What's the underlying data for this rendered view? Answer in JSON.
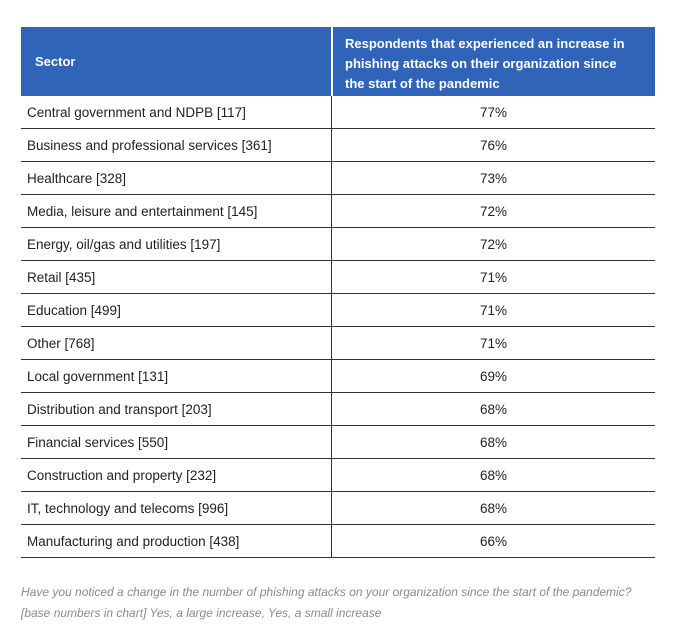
{
  "table": {
    "header": {
      "sector": "Sector",
      "value_line1": "Respondents that experienced an increase in",
      "value_line2": "phishing attacks on their organization since",
      "value_line3": "the start of the pandemic"
    },
    "rows": [
      {
        "sector": "Central government and NDPB [117]",
        "value": "77%"
      },
      {
        "sector": "Business and professional services [361]",
        "value": "76%"
      },
      {
        "sector": "Healthcare [328]",
        "value": "73%"
      },
      {
        "sector": "Media, leisure and entertainment [145]",
        "value": "72%"
      },
      {
        "sector": "Energy, oil/gas and utilities [197]",
        "value": "72%"
      },
      {
        "sector": "Retail [435]",
        "value": "71%"
      },
      {
        "sector": "Education [499]",
        "value": "71%"
      },
      {
        "sector": "Other [768]",
        "value": "71%"
      },
      {
        "sector": "Local government [131]",
        "value": "69%"
      },
      {
        "sector": "Distribution and transport [203]",
        "value": "68%"
      },
      {
        "sector": "Financial services [550]",
        "value": "68%"
      },
      {
        "sector": "Construction and property [232]",
        "value": "68%"
      },
      {
        "sector": "IT, technology and telecoms [996]",
        "value": "68%"
      },
      {
        "sector": "Manufacturing and production [438]",
        "value": "66%"
      }
    ]
  },
  "footnote": {
    "line1": "Have you noticed a change in the number of phishing attacks on your organization since the start of the pandemic?",
    "line2": "[base numbers in chart] Yes, a large increase, Yes, a small increase"
  },
  "colors": {
    "header_background": "#2f64b8",
    "header_text": "#ffffff",
    "footnote_text": "#8a8a8a"
  }
}
